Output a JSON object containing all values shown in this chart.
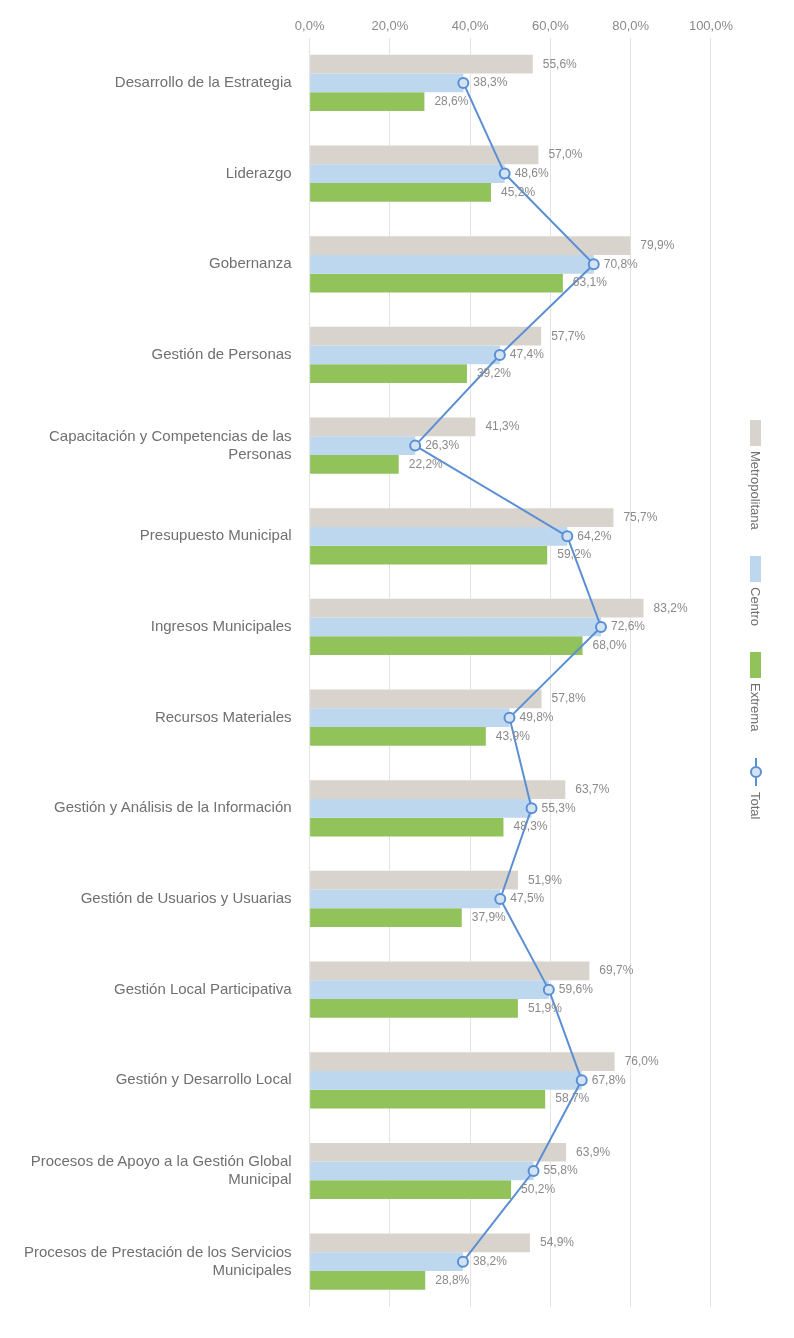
{
  "chart_data": {
    "type": "bar",
    "orientation": "horizontal",
    "categories": [
      "Desarrollo de la Estrategia",
      "Liderazgo",
      "Gobernanza",
      "Gestión de Personas",
      "Capacitación y Competencias de las Personas",
      "Presupuesto Municipal",
      "Ingresos Municipales",
      "Recursos Materiales",
      "Gestión y Análisis de la Información",
      "Gestión de Usuarios y Usuarias",
      "Gestión Local Participativa",
      "Gestión y Desarrollo Local",
      "Procesos de Apoyo a la Gestión Global Municipal",
      "Procesos de Prestación de los Servicios Municipales"
    ],
    "series": [
      {
        "name": "Metropolitana",
        "color": "#d9d3ce",
        "values": [
          55.6,
          57.0,
          79.9,
          57.7,
          41.3,
          75.7,
          83.2,
          57.8,
          63.7,
          51.9,
          69.7,
          76.0,
          63.9,
          54.9
        ],
        "value_labels": [
          "55,6%",
          "57,0%",
          "79,9%",
          "57,7%",
          "41,3%",
          "75,7%",
          "83,2%",
          "57,8%",
          "63,7%",
          "51,9%",
          "69,7%",
          "76,0%",
          "63,9%",
          "54,9%"
        ]
      },
      {
        "name": "Centro",
        "color": "#bdd7ee",
        "values": [
          38.3,
          48.6,
          70.8,
          47.4,
          26.3,
          64.2,
          72.6,
          49.8,
          55.3,
          47.5,
          59.6,
          67.8,
          55.8,
          38.2
        ],
        "value_labels": [
          "38,3%",
          "48,6%",
          "70,8%",
          "47,4%",
          "26,3%",
          "64,2%",
          "72,6%",
          "49,8%",
          "55,3%",
          "47,5%",
          "59,6%",
          "67,8%",
          "55,8%",
          "38,2%"
        ]
      },
      {
        "name": "Extrema",
        "color": "#92c25a",
        "values": [
          28.6,
          45.2,
          63.1,
          39.2,
          22.2,
          59.2,
          68.0,
          43.9,
          48.3,
          37.9,
          51.9,
          58.7,
          50.2,
          28.8
        ],
        "value_labels": [
          "28,6%",
          "45,2%",
          "63,1%",
          "39,2%",
          "22,2%",
          "59,2%",
          "68,0%",
          "43,9%",
          "48,3%",
          "37,9%",
          "51,9%",
          "58,7%",
          "50,2%",
          "28,8%"
        ]
      },
      {
        "name": "Total",
        "type": "line",
        "color": "#5b8fd4",
        "values": [
          38.3,
          48.6,
          70.8,
          47.4,
          26.3,
          64.2,
          72.6,
          49.8,
          55.3,
          47.5,
          59.6,
          67.8,
          55.8,
          38.2
        ]
      }
    ],
    "xlim": [
      0,
      100
    ],
    "xticks": [
      {
        "value": 0,
        "label": "0,0%"
      },
      {
        "value": 20,
        "label": "20,0%"
      },
      {
        "value": 40,
        "label": "40,0%"
      },
      {
        "value": 60,
        "label": "60,0%"
      },
      {
        "value": 80,
        "label": "80,0%"
      },
      {
        "value": 100,
        "label": "100,0%"
      }
    ],
    "grid": "x",
    "legend": "right",
    "marker": "circle",
    "line_style": "solid"
  }
}
